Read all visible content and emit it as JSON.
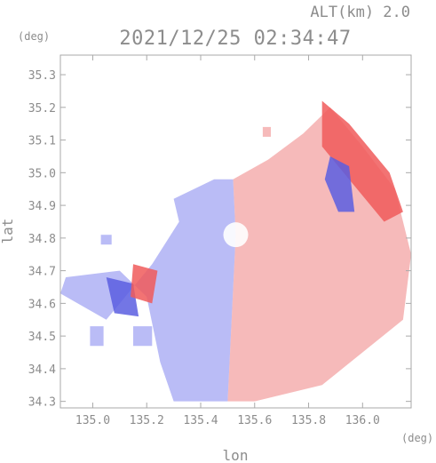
{
  "chart_data": {
    "type": "heatmap",
    "title": "2021/12/25 02:34:47",
    "altitude_label": "ALT(km) 2.0",
    "xlabel": "lon",
    "ylabel": "lat",
    "x_unit": "(deg)",
    "y_unit": "(deg)",
    "xlim": [
      134.88,
      136.18
    ],
    "ylim": [
      34.28,
      35.36
    ],
    "x_ticks": [
      "135.0",
      "135.2",
      "135.4",
      "135.6",
      "135.8",
      "136.0"
    ],
    "y_ticks": [
      "34.3",
      "34.4",
      "34.5",
      "34.6",
      "34.7",
      "34.8",
      "34.9",
      "35.0",
      "35.1",
      "35.2",
      "35.3"
    ],
    "grid": false,
    "colors": {
      "negative": "#8c8ff0",
      "positive": "#f08c8c",
      "strong_negative": "#5a5ee0",
      "strong_positive": "#f05a5a"
    },
    "radar_center": [
      135.53,
      34.81
    ],
    "field_regions": [
      {
        "sign": "negative",
        "polygon": [
          [
            135.3,
            34.92
          ],
          [
            135.45,
            34.98
          ],
          [
            135.52,
            34.98
          ],
          [
            135.53,
            34.81
          ],
          [
            135.5,
            34.3
          ],
          [
            135.3,
            34.3
          ],
          [
            135.25,
            34.42
          ],
          [
            135.2,
            34.62
          ],
          [
            135.1,
            34.7
          ],
          [
            134.9,
            34.68
          ],
          [
            134.88,
            34.63
          ],
          [
            135.05,
            34.55
          ],
          [
            135.22,
            34.72
          ],
          [
            135.32,
            34.85
          ]
        ]
      },
      {
        "sign": "positive",
        "polygon": [
          [
            135.52,
            34.98
          ],
          [
            135.65,
            35.04
          ],
          [
            135.78,
            35.12
          ],
          [
            135.88,
            35.2
          ],
          [
            136.0,
            35.08
          ],
          [
            136.12,
            34.95
          ],
          [
            136.18,
            34.75
          ],
          [
            136.15,
            34.55
          ],
          [
            136.0,
            34.45
          ],
          [
            135.85,
            34.35
          ],
          [
            135.6,
            34.3
          ],
          [
            135.5,
            34.3
          ],
          [
            135.53,
            34.81
          ]
        ]
      },
      {
        "sign": "strong_positive",
        "polygon": [
          [
            135.85,
            35.22
          ],
          [
            135.95,
            35.15
          ],
          [
            136.1,
            35.0
          ],
          [
            136.15,
            34.88
          ],
          [
            136.08,
            34.85
          ],
          [
            135.95,
            34.98
          ],
          [
            135.85,
            35.08
          ]
        ]
      },
      {
        "sign": "strong_negative",
        "polygon": [
          [
            135.88,
            35.05
          ],
          [
            135.95,
            35.02
          ],
          [
            135.97,
            34.88
          ],
          [
            135.91,
            34.88
          ],
          [
            135.86,
            34.98
          ]
        ]
      },
      {
        "sign": "strong_negative",
        "polygon": [
          [
            135.05,
            34.68
          ],
          [
            135.15,
            34.66
          ],
          [
            135.17,
            34.56
          ],
          [
            135.08,
            34.57
          ]
        ]
      },
      {
        "sign": "strong_positive",
        "polygon": [
          [
            135.15,
            34.72
          ],
          [
            135.24,
            34.7
          ],
          [
            135.22,
            34.6
          ],
          [
            135.14,
            34.62
          ]
        ]
      },
      {
        "sign": "negative",
        "polygon": [
          [
            134.99,
            34.53
          ],
          [
            135.04,
            34.53
          ],
          [
            135.04,
            34.47
          ],
          [
            134.99,
            34.47
          ]
        ]
      },
      {
        "sign": "negative",
        "polygon": [
          [
            135.15,
            34.53
          ],
          [
            135.22,
            34.53
          ],
          [
            135.22,
            34.47
          ],
          [
            135.15,
            34.47
          ]
        ]
      },
      {
        "sign": "negative",
        "polygon": [
          [
            135.03,
            34.81
          ],
          [
            135.07,
            34.81
          ],
          [
            135.07,
            34.78
          ],
          [
            135.03,
            34.78
          ]
        ]
      },
      {
        "sign": "positive",
        "polygon": [
          [
            135.63,
            35.14
          ],
          [
            135.66,
            35.14
          ],
          [
            135.66,
            35.11
          ],
          [
            135.63,
            35.11
          ]
        ]
      }
    ]
  }
}
